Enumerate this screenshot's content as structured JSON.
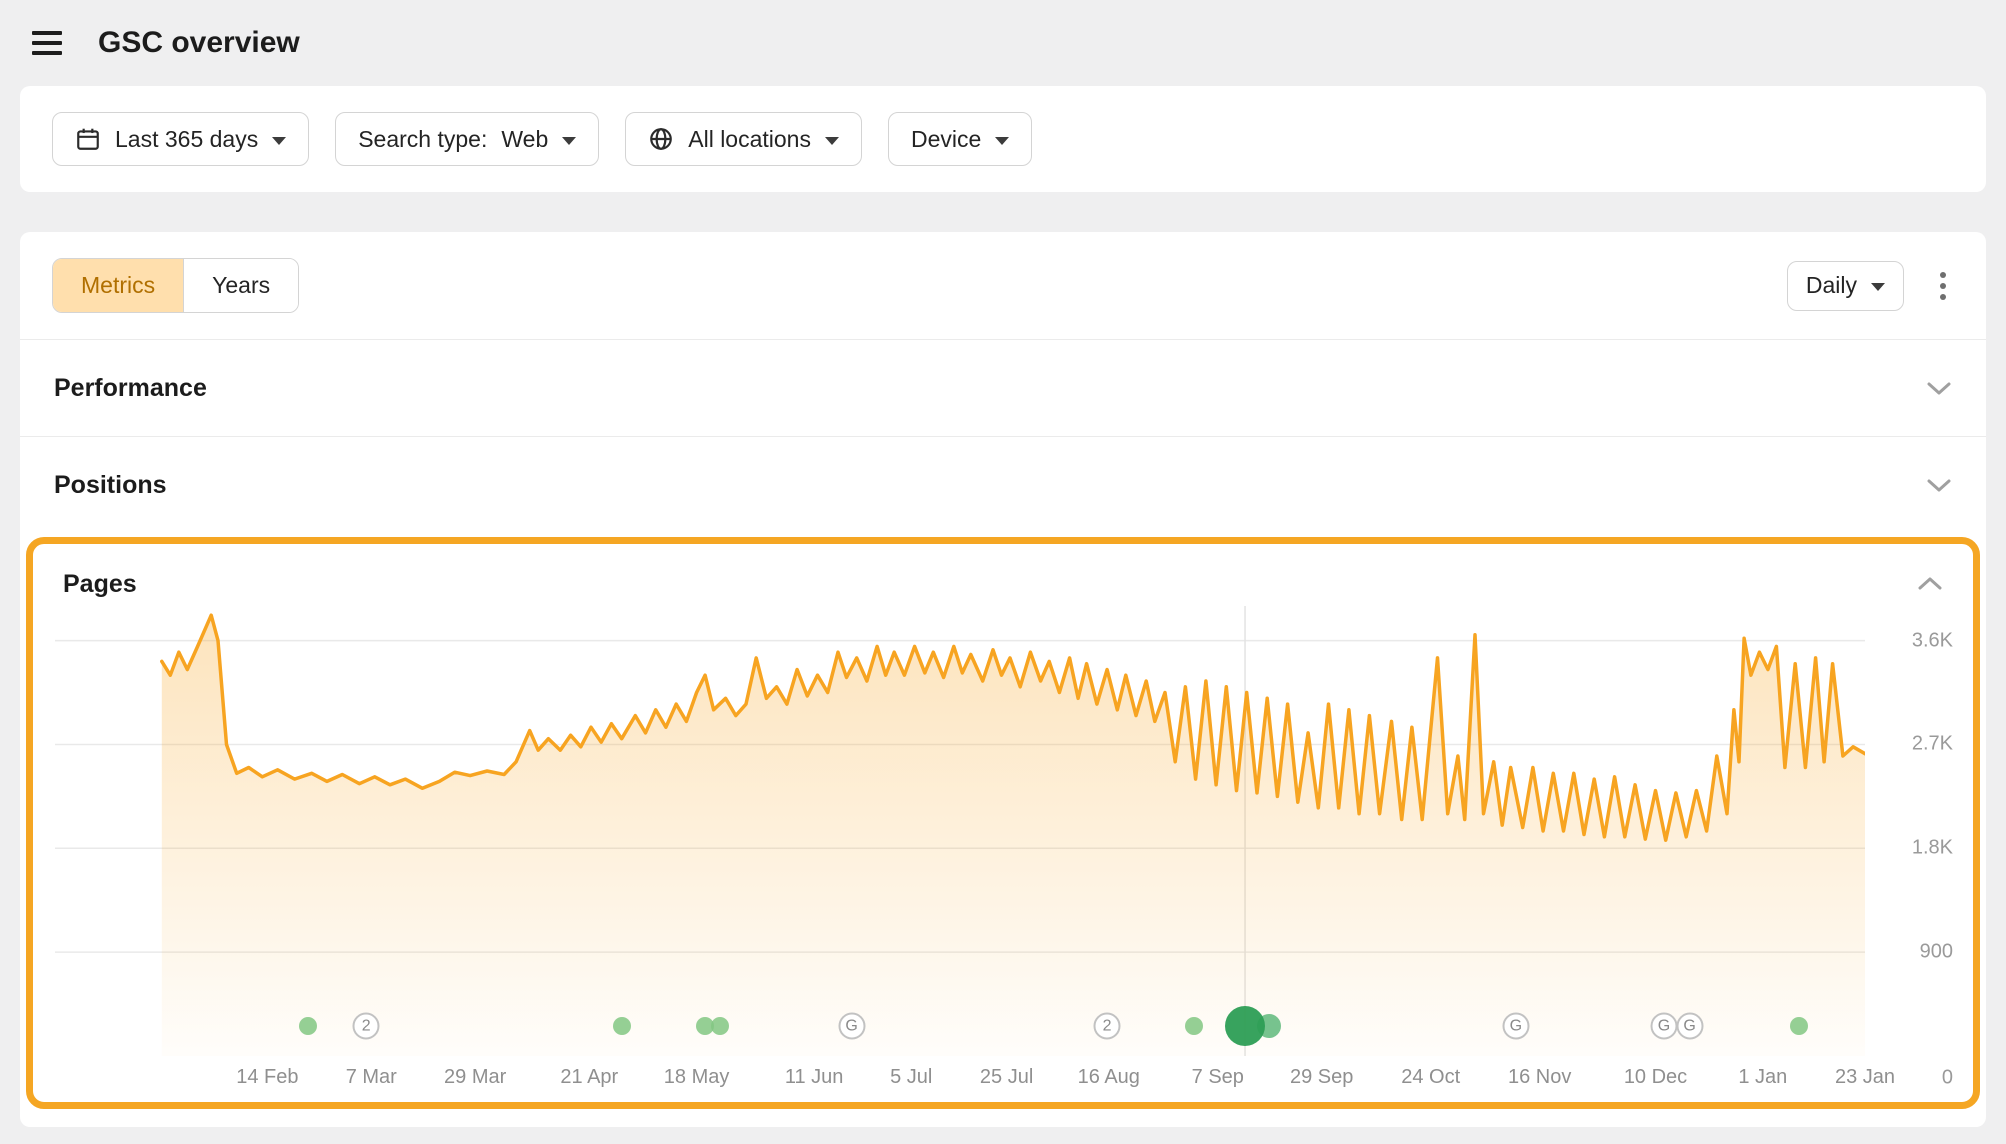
{
  "header": {
    "title": "GSC overview"
  },
  "toolbar": {
    "date_range": "Last 365 days",
    "search_type": {
      "label": "Search type:",
      "value": "Web"
    },
    "locations": "All locations",
    "device": "Device"
  },
  "view_tabs": {
    "metrics": "Metrics",
    "years": "Years"
  },
  "controls": {
    "granularity": "Daily"
  },
  "sections": {
    "performance": "Performance",
    "positions": "Positions",
    "pages": "Pages"
  },
  "colors": {
    "highlight_border": "#f5a623",
    "line": "#f7a421",
    "tab_active_bg": "#ffdfad",
    "tab_active_text": "#b06f00",
    "event_dot_green": "#83c783",
    "event_dot_big_green": "#2d9e55"
  },
  "chart_data": {
    "type": "area",
    "title": "Pages",
    "granularity": "Daily",
    "legend": "none",
    "grid": "horizontal",
    "y_axis": {
      "max": 3900,
      "ticks": [
        {
          "label": "3.6K",
          "value": 3600
        },
        {
          "label": "2.7K",
          "value": 2700
        },
        {
          "label": "1.8K",
          "value": 1800
        },
        {
          "label": "900",
          "value": 900
        },
        {
          "label": "0",
          "value": 0
        }
      ]
    },
    "x_ticks": [
      {
        "label": "14 Feb",
        "x": 6.2
      },
      {
        "label": "7 Mar",
        "x": 12.3
      },
      {
        "label": "29 Mar",
        "x": 18.4
      },
      {
        "label": "21 Apr",
        "x": 25.1
      },
      {
        "label": "18 May",
        "x": 31.4
      },
      {
        "label": "11 Jun",
        "x": 38.3
      },
      {
        "label": "5 Jul",
        "x": 44.0
      },
      {
        "label": "25 Jul",
        "x": 49.6
      },
      {
        "label": "16 Aug",
        "x": 55.6
      },
      {
        "label": "7 Sep",
        "x": 62.0
      },
      {
        "label": "29 Sep",
        "x": 68.1
      },
      {
        "label": "24 Oct",
        "x": 74.5
      },
      {
        "label": "16 Nov",
        "x": 80.9
      },
      {
        "label": "10 Dec",
        "x": 87.7
      },
      {
        "label": "1 Jan",
        "x": 94.0
      },
      {
        "label": "23 Jan",
        "x": 100
      }
    ],
    "x_start_pct": 5.9,
    "vline_x_pct": 63.6,
    "points": [
      [
        0,
        3420
      ],
      [
        0.5,
        3300
      ],
      [
        1,
        3500
      ],
      [
        1.5,
        3350
      ],
      [
        2.1,
        3550
      ],
      [
        2.9,
        3820
      ],
      [
        3.3,
        3600
      ],
      [
        3.8,
        2700
      ],
      [
        4.4,
        2450
      ],
      [
        5.1,
        2500
      ],
      [
        5.9,
        2420
      ],
      [
        6.8,
        2480
      ],
      [
        7.8,
        2400
      ],
      [
        8.8,
        2450
      ],
      [
        9.7,
        2380
      ],
      [
        10.6,
        2440
      ],
      [
        11.6,
        2360
      ],
      [
        12.5,
        2420
      ],
      [
        13.4,
        2350
      ],
      [
        14.3,
        2400
      ],
      [
        15.3,
        2320
      ],
      [
        16.3,
        2380
      ],
      [
        17.2,
        2460
      ],
      [
        18.1,
        2430
      ],
      [
        19.1,
        2470
      ],
      [
        20.1,
        2440
      ],
      [
        20.8,
        2550
      ],
      [
        21.6,
        2820
      ],
      [
        22.1,
        2650
      ],
      [
        22.7,
        2750
      ],
      [
        23.4,
        2650
      ],
      [
        24,
        2780
      ],
      [
        24.6,
        2680
      ],
      [
        25.2,
        2850
      ],
      [
        25.8,
        2720
      ],
      [
        26.4,
        2880
      ],
      [
        27,
        2750
      ],
      [
        27.8,
        2950
      ],
      [
        28.4,
        2800
      ],
      [
        29,
        3000
      ],
      [
        29.6,
        2850
      ],
      [
        30.2,
        3050
      ],
      [
        30.8,
        2900
      ],
      [
        31.4,
        3150
      ],
      [
        31.9,
        3300
      ],
      [
        32.4,
        3000
      ],
      [
        33.1,
        3100
      ],
      [
        33.7,
        2950
      ],
      [
        34.3,
        3050
      ],
      [
        34.9,
        3450
      ],
      [
        35.5,
        3100
      ],
      [
        36.1,
        3200
      ],
      [
        36.7,
        3050
      ],
      [
        37.3,
        3350
      ],
      [
        37.9,
        3120
      ],
      [
        38.5,
        3300
      ],
      [
        39.1,
        3150
      ],
      [
        39.7,
        3500
      ],
      [
        40.2,
        3280
      ],
      [
        40.8,
        3450
      ],
      [
        41.4,
        3250
      ],
      [
        42,
        3550
      ],
      [
        42.5,
        3300
      ],
      [
        43,
        3500
      ],
      [
        43.6,
        3300
      ],
      [
        44.2,
        3550
      ],
      [
        44.8,
        3320
      ],
      [
        45.3,
        3500
      ],
      [
        45.9,
        3280
      ],
      [
        46.5,
        3550
      ],
      [
        47,
        3320
      ],
      [
        47.5,
        3480
      ],
      [
        48.2,
        3250
      ],
      [
        48.8,
        3520
      ],
      [
        49.3,
        3300
      ],
      [
        49.8,
        3450
      ],
      [
        50.4,
        3200
      ],
      [
        51,
        3500
      ],
      [
        51.6,
        3250
      ],
      [
        52.1,
        3420
      ],
      [
        52.7,
        3150
      ],
      [
        53.3,
        3450
      ],
      [
        53.8,
        3100
      ],
      [
        54.3,
        3400
      ],
      [
        54.9,
        3050
      ],
      [
        55.5,
        3350
      ],
      [
        56.1,
        3000
      ],
      [
        56.6,
        3300
      ],
      [
        57.2,
        2950
      ],
      [
        57.8,
        3250
      ],
      [
        58.3,
        2900
      ],
      [
        58.9,
        3150
      ],
      [
        59.5,
        2550
      ],
      [
        60.1,
        3200
      ],
      [
        60.7,
        2400
      ],
      [
        61.3,
        3250
      ],
      [
        61.9,
        2350
      ],
      [
        62.5,
        3200
      ],
      [
        63.1,
        2300
      ],
      [
        63.7,
        3150
      ],
      [
        64.3,
        2280
      ],
      [
        64.9,
        3100
      ],
      [
        65.5,
        2250
      ],
      [
        66.1,
        3050
      ],
      [
        66.7,
        2200
      ],
      [
        67.3,
        2800
      ],
      [
        67.9,
        2150
      ],
      [
        68.5,
        3050
      ],
      [
        69.1,
        2150
      ],
      [
        69.7,
        3000
      ],
      [
        70.3,
        2100
      ],
      [
        70.9,
        2950
      ],
      [
        71.5,
        2100
      ],
      [
        72.2,
        2900
      ],
      [
        72.8,
        2050
      ],
      [
        73.4,
        2850
      ],
      [
        74,
        2050
      ],
      [
        74.9,
        3450
      ],
      [
        75.5,
        2100
      ],
      [
        76.1,
        2600
      ],
      [
        76.5,
        2050
      ],
      [
        77.1,
        3650
      ],
      [
        77.6,
        2100
      ],
      [
        78.2,
        2550
      ],
      [
        78.7,
        2000
      ],
      [
        79.2,
        2500
      ],
      [
        79.9,
        1980
      ],
      [
        80.5,
        2500
      ],
      [
        81.1,
        1950
      ],
      [
        81.7,
        2450
      ],
      [
        82.3,
        1950
      ],
      [
        82.9,
        2450
      ],
      [
        83.5,
        1920
      ],
      [
        84.1,
        2400
      ],
      [
        84.7,
        1900
      ],
      [
        85.3,
        2420
      ],
      [
        85.9,
        1900
      ],
      [
        86.5,
        2350
      ],
      [
        87.1,
        1880
      ],
      [
        87.7,
        2300
      ],
      [
        88.3,
        1870
      ],
      [
        88.9,
        2280
      ],
      [
        89.5,
        1900
      ],
      [
        90.1,
        2300
      ],
      [
        90.7,
        1950
      ],
      [
        91.3,
        2600
      ],
      [
        91.9,
        2100
      ],
      [
        92.3,
        3000
      ],
      [
        92.6,
        2550
      ],
      [
        92.9,
        3620
      ],
      [
        93.3,
        3300
      ],
      [
        93.8,
        3500
      ],
      [
        94.3,
        3350
      ],
      [
        94.8,
        3550
      ],
      [
        95.3,
        2500
      ],
      [
        95.9,
        3400
      ],
      [
        96.5,
        2500
      ],
      [
        97.1,
        3450
      ],
      [
        97.6,
        2550
      ],
      [
        98.1,
        3400
      ],
      [
        98.7,
        2600
      ],
      [
        99.3,
        2680
      ],
      [
        100,
        2620
      ]
    ],
    "markers": [
      {
        "x": 8.6,
        "type": "dot"
      },
      {
        "x": 12.0,
        "type": "badge",
        "label": "2"
      },
      {
        "x": 27.0,
        "type": "dot"
      },
      {
        "x": 31.9,
        "type": "dot"
      },
      {
        "x": 32.8,
        "type": "dot"
      },
      {
        "x": 40.5,
        "type": "badge",
        "label": "G"
      },
      {
        "x": 55.5,
        "type": "badge",
        "label": "2"
      },
      {
        "x": 60.6,
        "type": "dot"
      },
      {
        "x": 65.0,
        "type": "dot-medium"
      },
      {
        "x": 63.6,
        "type": "dot-big"
      },
      {
        "x": 79.5,
        "type": "badge",
        "label": "G"
      },
      {
        "x": 88.2,
        "type": "badge",
        "label": "G"
      },
      {
        "x": 89.7,
        "type": "badge",
        "label": "G"
      },
      {
        "x": 96.1,
        "type": "dot"
      }
    ]
  }
}
